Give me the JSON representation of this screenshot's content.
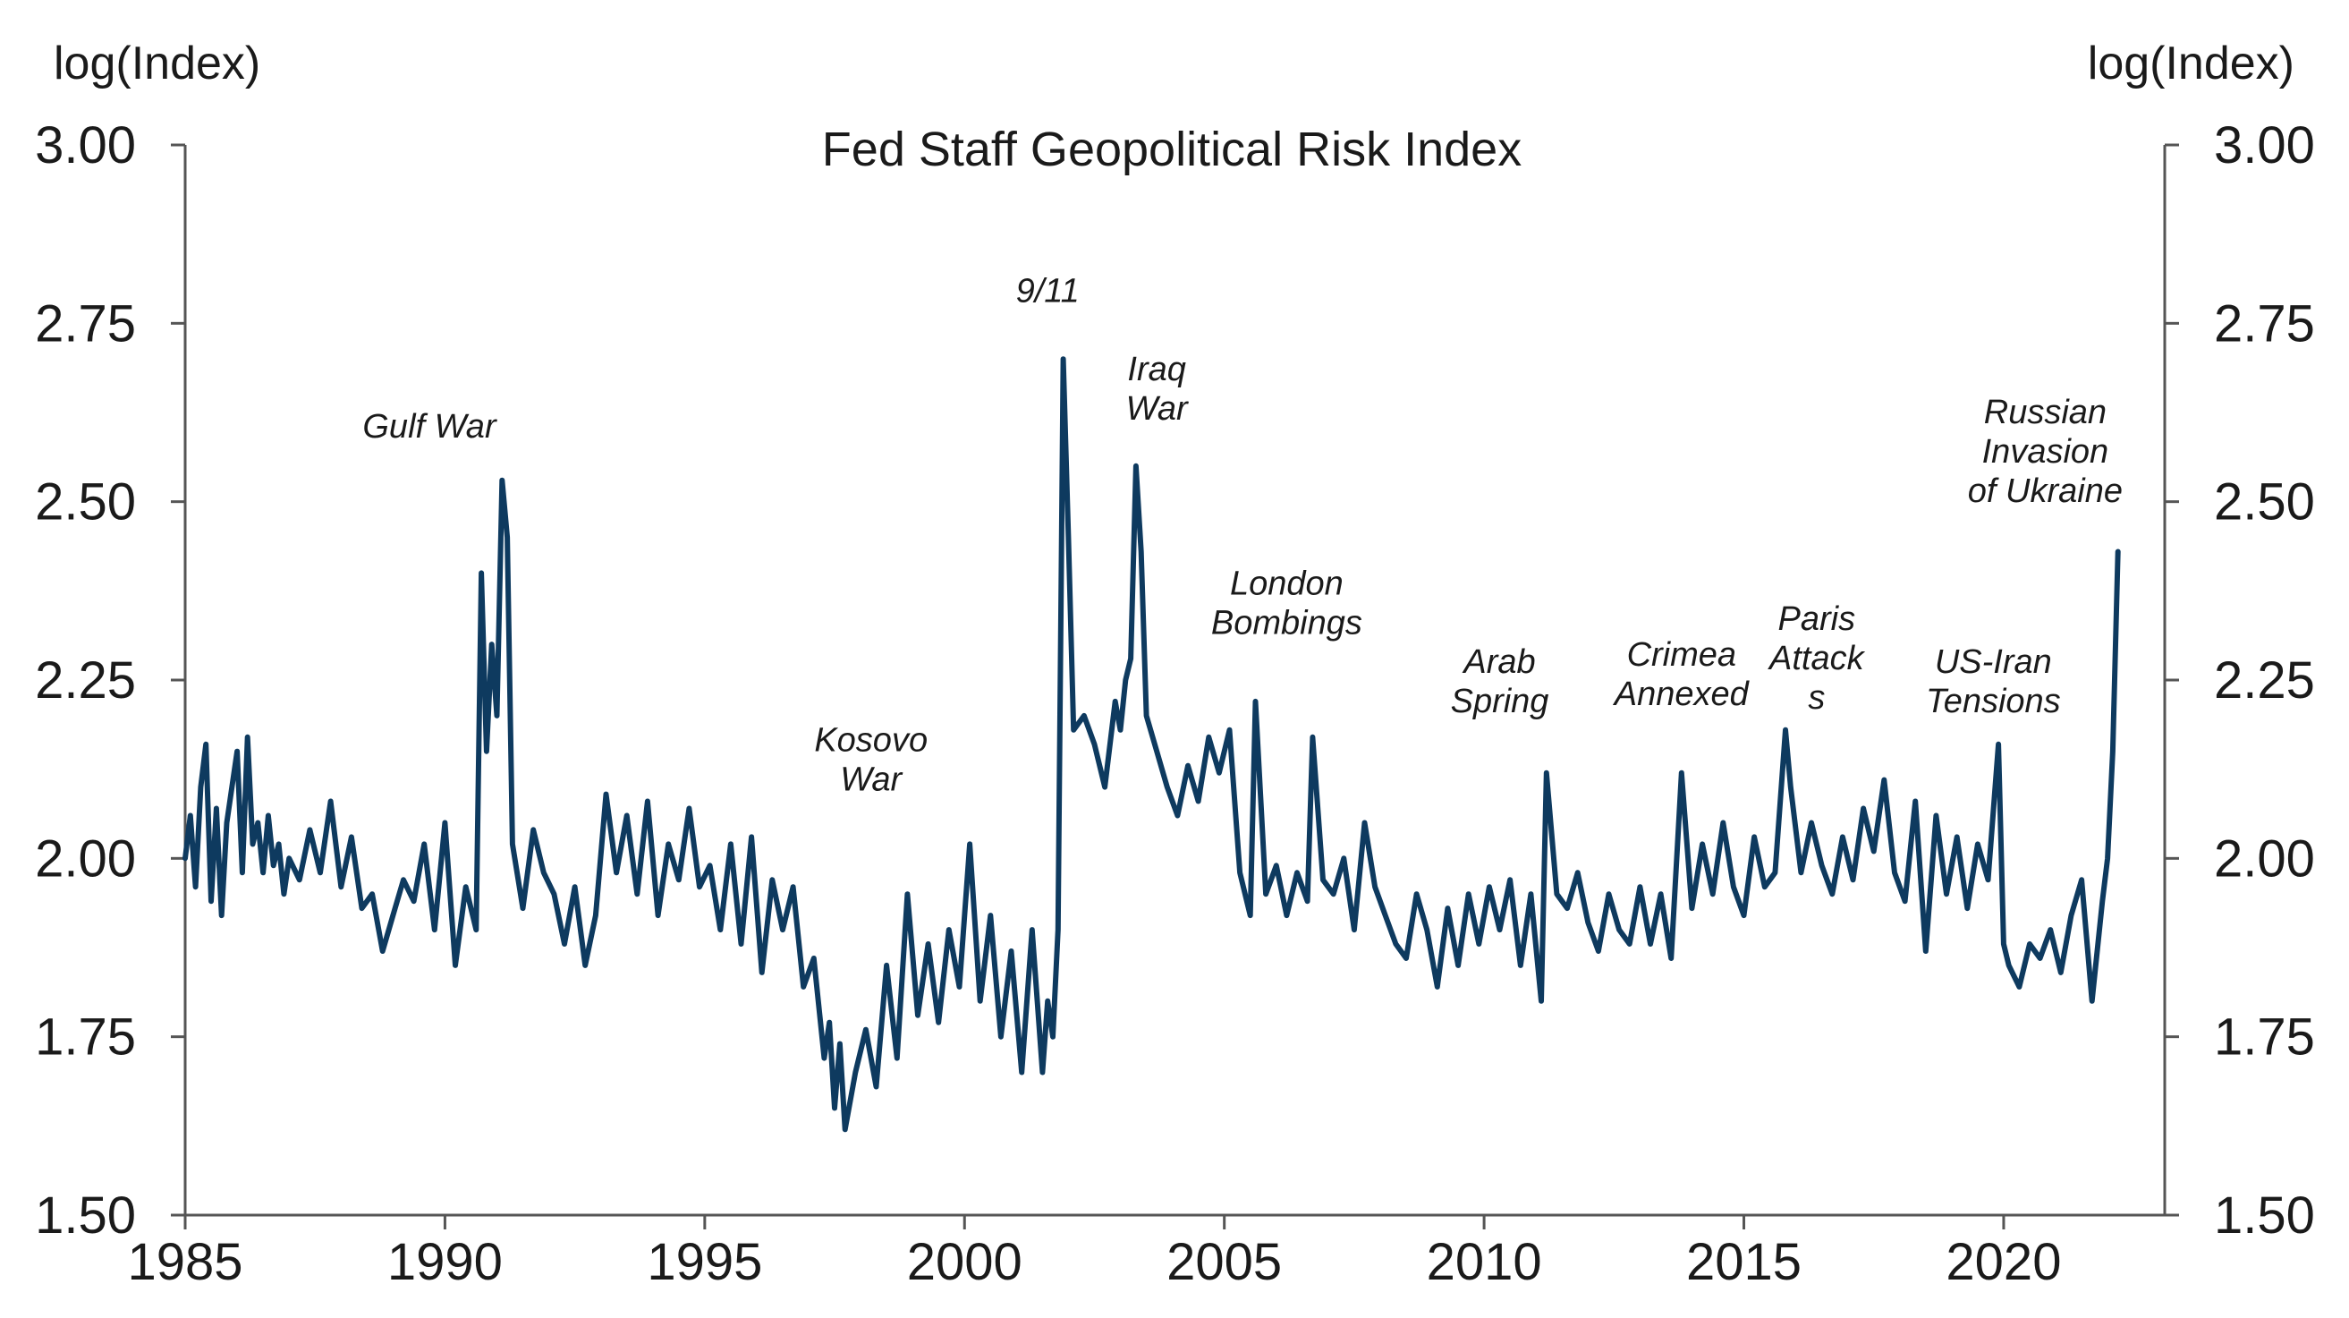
{
  "chart_data": {
    "type": "line",
    "title": "Fed Staff Geopolitical Risk Index",
    "ylabel_left": "log(Index)",
    "ylabel_right": "log(Index)",
    "xlabel": "",
    "xlim": [
      1985,
      2023.1
    ],
    "ylim": [
      1.5,
      3.0
    ],
    "x_ticks": [
      "1985",
      "1990",
      "1995",
      "2000",
      "2005",
      "2010",
      "2015",
      "2020"
    ],
    "y_ticks": [
      "1.50",
      "1.75",
      "2.00",
      "2.25",
      "2.50",
      "2.75",
      "3.00"
    ],
    "line_color": "#0e3a5f",
    "grid": false,
    "series": [
      {
        "name": "Fed Staff Geopolitical Risk Index",
        "x": [
          1985.0,
          1985.1,
          1985.2,
          1985.3,
          1985.4,
          1985.5,
          1985.6,
          1985.7,
          1985.8,
          1985.9,
          1986.0,
          1986.1,
          1986.2,
          1986.3,
          1986.4,
          1986.5,
          1986.6,
          1986.7,
          1986.8,
          1986.9,
          1987.0,
          1987.2,
          1987.4,
          1987.6,
          1987.8,
          1988.0,
          1988.2,
          1988.4,
          1988.6,
          1988.8,
          1989.0,
          1989.2,
          1989.4,
          1989.6,
          1989.8,
          1990.0,
          1990.2,
          1990.4,
          1990.6,
          1990.7,
          1990.8,
          1990.9,
          1991.0,
          1991.1,
          1991.2,
          1991.3,
          1991.5,
          1991.7,
          1991.9,
          1992.1,
          1992.3,
          1992.5,
          1992.7,
          1992.9,
          1993.1,
          1993.3,
          1993.5,
          1993.7,
          1993.9,
          1994.1,
          1994.3,
          1994.5,
          1994.7,
          1994.9,
          1995.1,
          1995.3,
          1995.5,
          1995.7,
          1995.9,
          1996.1,
          1996.3,
          1996.5,
          1996.7,
          1996.9,
          1997.1,
          1997.3,
          1997.4,
          1997.5,
          1997.6,
          1997.7,
          1997.9,
          1998.1,
          1998.3,
          1998.5,
          1998.7,
          1998.9,
          1999.1,
          1999.3,
          1999.5,
          1999.7,
          1999.9,
          2000.1,
          2000.3,
          2000.5,
          2000.7,
          2000.9,
          2001.1,
          2001.3,
          2001.5,
          2001.6,
          2001.7,
          2001.8,
          2001.9,
          2002.0,
          2002.1,
          2002.3,
          2002.5,
          2002.7,
          2002.9,
          2003.0,
          2003.1,
          2003.2,
          2003.3,
          2003.4,
          2003.5,
          2003.7,
          2003.9,
          2004.1,
          2004.3,
          2004.5,
          2004.7,
          2004.9,
          2005.1,
          2005.3,
          2005.5,
          2005.6,
          2005.8,
          2006.0,
          2006.2,
          2006.4,
          2006.6,
          2006.7,
          2006.9,
          2007.1,
          2007.3,
          2007.5,
          2007.7,
          2007.9,
          2008.1,
          2008.3,
          2008.5,
          2008.7,
          2008.9,
          2009.1,
          2009.3,
          2009.5,
          2009.7,
          2009.9,
          2010.1,
          2010.3,
          2010.5,
          2010.7,
          2010.9,
          2011.1,
          2011.2,
          2011.4,
          2011.6,
          2011.8,
          2012.0,
          2012.2,
          2012.4,
          2012.6,
          2012.8,
          2013.0,
          2013.2,
          2013.4,
          2013.6,
          2013.8,
          2014.0,
          2014.2,
          2014.4,
          2014.6,
          2014.8,
          2015.0,
          2015.2,
          2015.4,
          2015.6,
          2015.8,
          2015.9,
          2016.1,
          2016.3,
          2016.5,
          2016.7,
          2016.9,
          2017.1,
          2017.3,
          2017.5,
          2017.7,
          2017.9,
          2018.1,
          2018.3,
          2018.5,
          2018.7,
          2018.9,
          2019.1,
          2019.3,
          2019.5,
          2019.7,
          2019.9,
          2020.0,
          2020.1,
          2020.3,
          2020.5,
          2020.7,
          2020.9,
          2021.1,
          2021.3,
          2021.5,
          2021.7,
          2021.9,
          2022.0,
          2022.1,
          2022.2
        ],
        "values": [
          2.0,
          2.06,
          1.96,
          2.1,
          2.16,
          1.94,
          2.07,
          1.92,
          2.05,
          2.1,
          2.15,
          1.98,
          2.17,
          2.02,
          2.05,
          1.98,
          2.06,
          1.99,
          2.02,
          1.95,
          2.0,
          1.97,
          2.04,
          1.98,
          2.08,
          1.96,
          2.03,
          1.93,
          1.95,
          1.87,
          1.92,
          1.97,
          1.94,
          2.02,
          1.9,
          2.05,
          1.85,
          1.96,
          1.9,
          2.4,
          2.15,
          2.3,
          2.2,
          2.53,
          2.45,
          2.02,
          1.93,
          2.04,
          1.98,
          1.95,
          1.88,
          1.96,
          1.85,
          1.92,
          2.09,
          1.98,
          2.06,
          1.95,
          2.08,
          1.92,
          2.02,
          1.97,
          2.07,
          1.96,
          1.99,
          1.9,
          2.02,
          1.88,
          2.03,
          1.84,
          1.97,
          1.9,
          1.96,
          1.82,
          1.86,
          1.72,
          1.77,
          1.65,
          1.74,
          1.62,
          1.7,
          1.76,
          1.68,
          1.85,
          1.72,
          1.95,
          1.78,
          1.88,
          1.77,
          1.9,
          1.82,
          2.02,
          1.8,
          1.92,
          1.75,
          1.87,
          1.7,
          1.9,
          1.7,
          1.8,
          1.75,
          1.9,
          2.7,
          2.45,
          2.18,
          2.2,
          2.16,
          2.1,
          2.22,
          2.18,
          2.25,
          2.28,
          2.55,
          2.43,
          2.2,
          2.15,
          2.1,
          2.06,
          2.13,
          2.08,
          2.17,
          2.12,
          2.18,
          1.98,
          1.92,
          2.22,
          1.95,
          1.99,
          1.92,
          1.98,
          1.94,
          2.17,
          1.97,
          1.95,
          2.0,
          1.9,
          2.05,
          1.96,
          1.92,
          1.88,
          1.86,
          1.95,
          1.9,
          1.82,
          1.93,
          1.85,
          1.95,
          1.88,
          1.96,
          1.9,
          1.97,
          1.85,
          1.95,
          1.8,
          2.12,
          1.95,
          1.93,
          1.98,
          1.91,
          1.87,
          1.95,
          1.9,
          1.88,
          1.96,
          1.88,
          1.95,
          1.86,
          2.12,
          1.93,
          2.02,
          1.95,
          2.05,
          1.96,
          1.92,
          2.03,
          1.96,
          1.98,
          2.18,
          2.1,
          1.98,
          2.05,
          1.99,
          1.95,
          2.03,
          1.97,
          2.07,
          2.01,
          2.11,
          1.98,
          1.94,
          2.08,
          1.87,
          2.06,
          1.95,
          2.03,
          1.93,
          2.02,
          1.97,
          2.16,
          1.88,
          1.85,
          1.82,
          1.88,
          1.86,
          1.9,
          1.84,
          1.92,
          1.97,
          1.8,
          1.94,
          2.0,
          2.15,
          2.43
        ]
      }
    ],
    "annotations": [
      {
        "lines": [
          "Gulf War"
        ],
        "x": 1989.7,
        "y": 2.59
      },
      {
        "lines": [
          "Kosovo",
          "War"
        ],
        "x": 1998.2,
        "y": 2.15
      },
      {
        "lines": [
          "9/11"
        ],
        "x": 2001.6,
        "y": 2.78
      },
      {
        "lines": [
          "Iraq",
          "War"
        ],
        "x": 2003.7,
        "y": 2.67
      },
      {
        "lines": [
          "London",
          "Bombings"
        ],
        "x": 2006.2,
        "y": 2.37
      },
      {
        "lines": [
          "Arab",
          "Spring"
        ],
        "x": 2010.3,
        "y": 2.26
      },
      {
        "lines": [
          "Crimea",
          "Annexed"
        ],
        "x": 2013.8,
        "y": 2.27
      },
      {
        "lines": [
          "Paris",
          "Attack",
          "s"
        ],
        "x": 2016.4,
        "y": 2.32
      },
      {
        "lines": [
          "US-Iran",
          "Tensions"
        ],
        "x": 2019.8,
        "y": 2.26
      },
      {
        "lines": [
          "Russian",
          "Invasion",
          "of Ukraine"
        ],
        "x": 2020.8,
        "y": 2.61
      }
    ]
  }
}
